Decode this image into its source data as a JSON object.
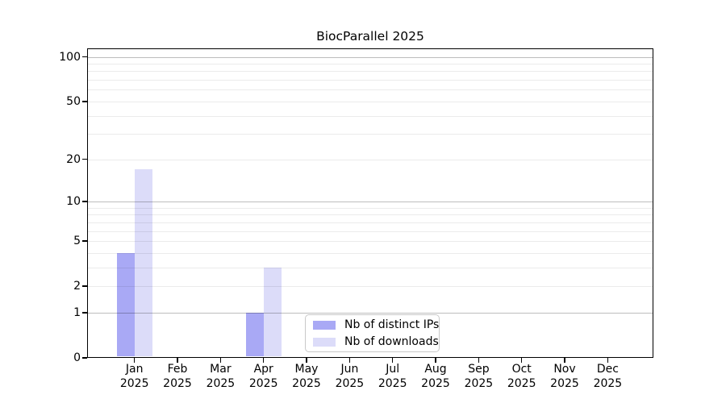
{
  "chart_data": {
    "type": "bar",
    "title": "BiocParallel 2025",
    "categories": [
      "Jan",
      "Feb",
      "Mar",
      "Apr",
      "May",
      "Jun",
      "Jul",
      "Aug",
      "Sep",
      "Oct",
      "Nov",
      "Dec"
    ],
    "category_year_label": "2025",
    "series": [
      {
        "name": "Nb of distinct IPs",
        "color": "#a9a9f5",
        "values": [
          4,
          0,
          0,
          1,
          0,
          0,
          0,
          0,
          0,
          0,
          0,
          0
        ]
      },
      {
        "name": "Nb of downloads",
        "color": "#dcdcf9",
        "values": [
          17,
          0,
          0,
          3,
          0,
          0,
          0,
          0,
          0,
          0,
          0,
          0
        ]
      }
    ],
    "xlabel": "",
    "ylabel": "",
    "y_scale": "log1p",
    "y_ticks": [
      0,
      1,
      2,
      5,
      10,
      20,
      50,
      100
    ],
    "y_major_gridlines": [
      1,
      10,
      100
    ],
    "y_minor_gridlines": [
      2,
      3,
      4,
      5,
      6,
      7,
      8,
      9,
      20,
      30,
      40,
      50,
      60,
      70,
      80,
      90
    ],
    "ylim": [
      0,
      114
    ],
    "grid": true,
    "legend_position": "bottom-center"
  }
}
